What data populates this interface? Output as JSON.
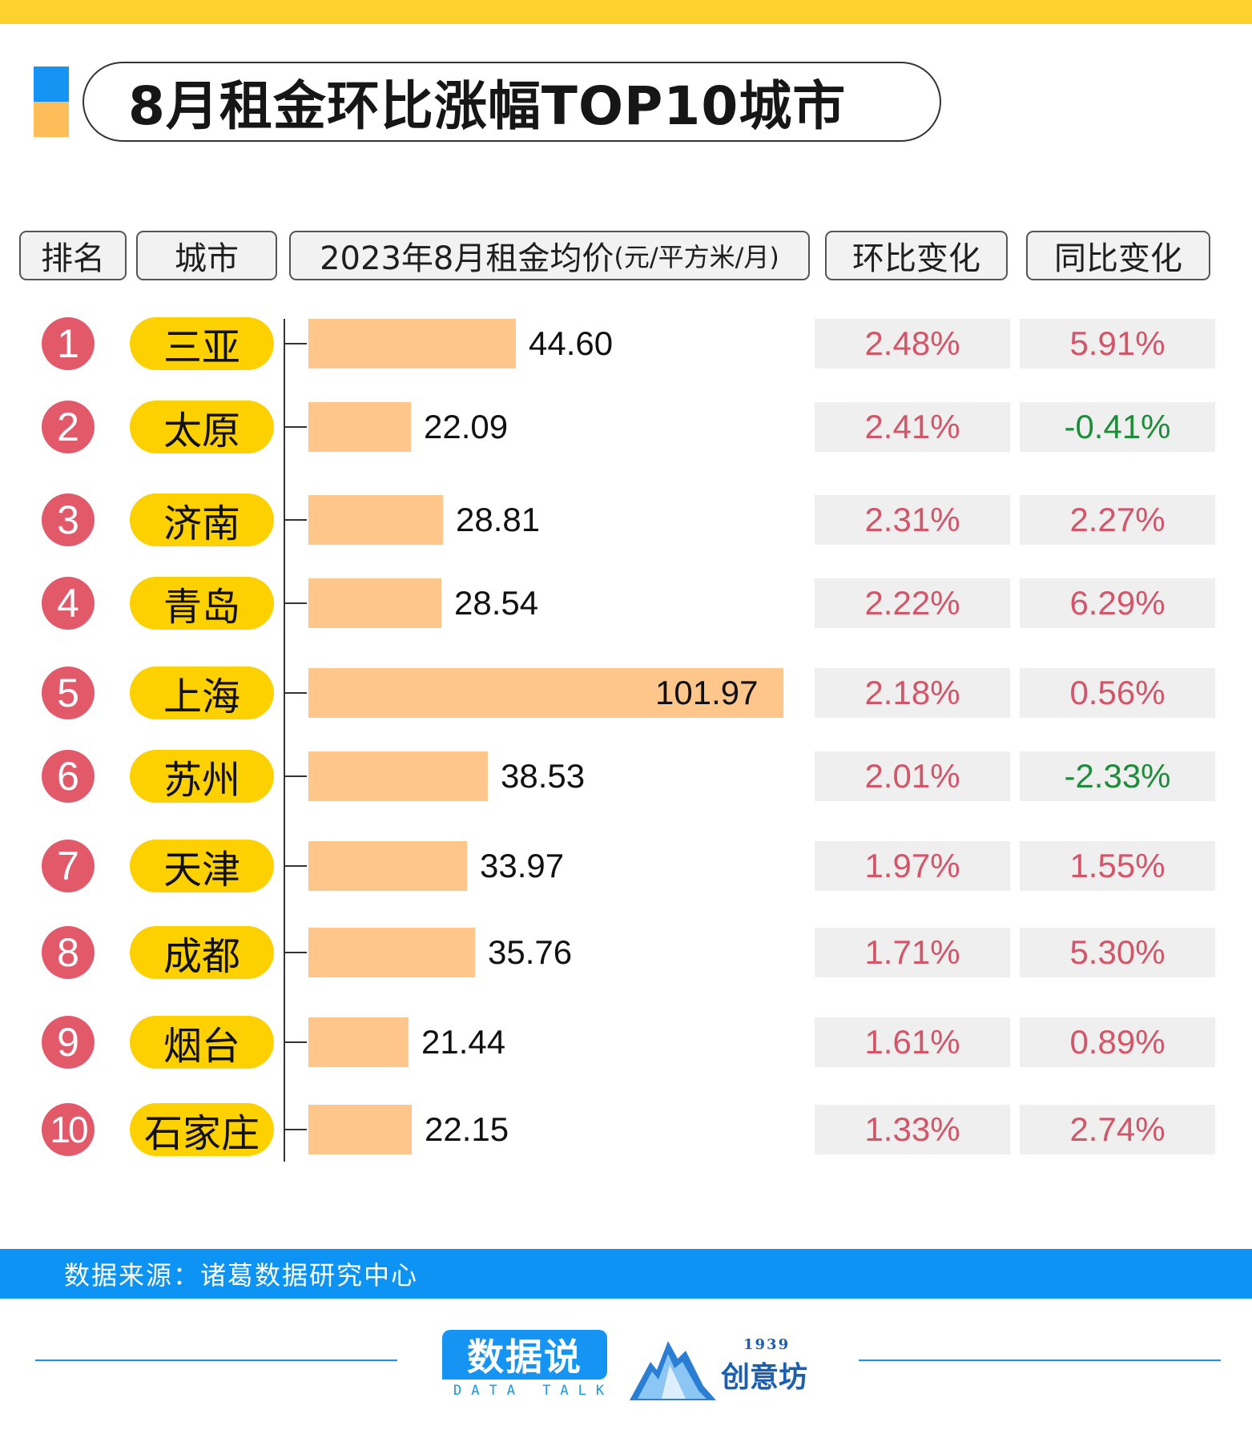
{
  "title": "8月租金环比涨幅TOP10城市",
  "headers": {
    "rank": "排名",
    "city": "城市",
    "price_main": "2023年8月租金均价",
    "price_unit": "(元/平方米/月)",
    "mom": "环比变化",
    "yoy": "同比变化"
  },
  "colors": {
    "top_bar": "#fdd12e",
    "rank_circle": "#e25a6a",
    "city_pill": "#fdd000",
    "bar": "#fec68a",
    "positive": "#d45468",
    "negative": "#1e8c3a",
    "source_bar": "#0d93f3"
  },
  "chart_data": {
    "type": "bar",
    "orientation": "horizontal",
    "title": "8月租金环比涨幅TOP10城市",
    "xlabel": "2023年8月租金均价(元/平方米/月)",
    "ylabel": "",
    "categories": [
      "三亚",
      "太原",
      "济南",
      "青岛",
      "上海",
      "苏州",
      "天津",
      "成都",
      "烟台",
      "石家庄"
    ],
    "ranks": [
      "1",
      "2",
      "3",
      "4",
      "5",
      "6",
      "7",
      "8",
      "9",
      "10"
    ],
    "values": [
      44.6,
      22.09,
      28.81,
      28.54,
      101.97,
      38.53,
      33.97,
      35.76,
      21.44,
      22.15
    ],
    "value_labels": [
      "44.60",
      "22.09",
      "28.81",
      "28.54",
      "101.97",
      "38.53",
      "33.97",
      "35.76",
      "21.44",
      "22.15"
    ],
    "mom_change": [
      "2.48%",
      "2.41%",
      "2.31%",
      "2.22%",
      "2.18%",
      "2.01%",
      "1.97%",
      "1.71%",
      "1.61%",
      "1.33%"
    ],
    "yoy_change": [
      "5.91%",
      "-0.41%",
      "2.27%",
      "6.29%",
      "0.56%",
      "-2.33%",
      "1.55%",
      "5.30%",
      "0.89%",
      "2.74%"
    ],
    "xlim": [
      0,
      101.97
    ],
    "grid": false,
    "legend": "none"
  },
  "source": "数据来源：诸葛数据研究中心",
  "logos": {
    "datatalk_main": "数据说",
    "datatalk_sub": "DATA TALK",
    "chuangyi_year": "1939",
    "chuangyi_name": "创意坊"
  }
}
